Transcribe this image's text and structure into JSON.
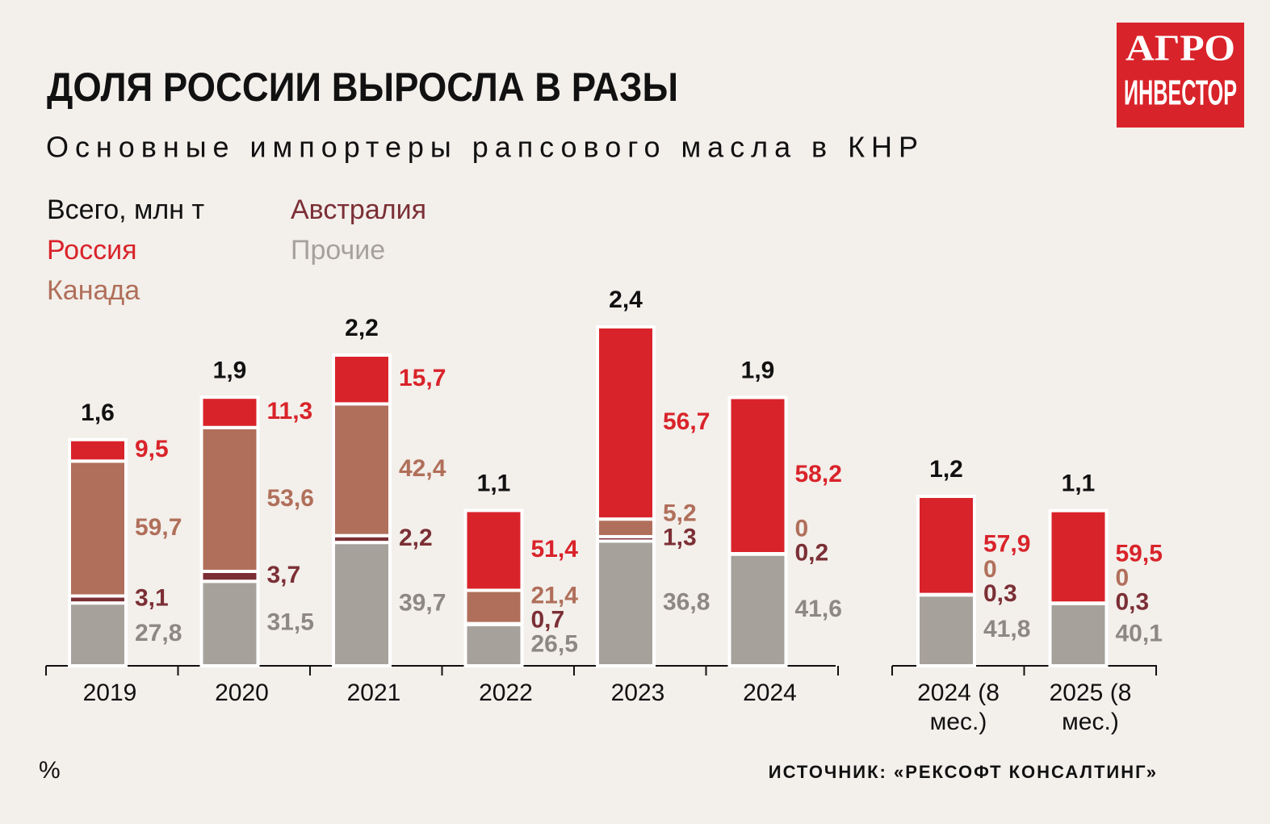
{
  "chart_data": {
    "type": "stacked-bar",
    "title": "ДОЛЯ РОССИИ ВЫРОСЛА В РАЗЫ",
    "subtitle": "Основные импортеры рапсового масла в КНР",
    "unit_note": "%",
    "source": "ИСТОЧНИК: «РЕКСОФТ КОНСАЛТИНГ»",
    "logo": [
      "АГРО",
      "ИНВЕСТОР"
    ],
    "categories": [
      "2019",
      "2020",
      "2021",
      "2022",
      "2023",
      "2024",
      "2024 (8 мес.)",
      "2025 (8 мес.)"
    ],
    "totals": {
      "name": "Всего, млн т",
      "color": "#111111",
      "values": [
        1.6,
        1.9,
        2.2,
        1.1,
        2.4,
        1.9,
        1.2,
        1.1
      ],
      "value_labels": [
        "1,6",
        "1,9",
        "2,2",
        "1,1",
        "2,4",
        "1,9",
        "1,2",
        "1,1"
      ]
    },
    "series": [
      {
        "name": "Россия",
        "color": "#d9232a",
        "values": [
          9.5,
          11.3,
          15.7,
          51.4,
          56.7,
          58.2,
          57.9,
          59.5
        ],
        "value_labels": [
          "9,5",
          "11,3",
          "15,7",
          "51,4",
          "56,7",
          "58,2",
          "57,9",
          "59,5"
        ]
      },
      {
        "name": "Канада",
        "color": "#b06f5a",
        "values": [
          59.7,
          53.6,
          42.4,
          21.4,
          5.2,
          0,
          0,
          0
        ],
        "value_labels": [
          "59,7",
          "53,6",
          "42,4",
          "21,4",
          "5,2",
          "0",
          "0",
          "0"
        ]
      },
      {
        "name": "Австралия",
        "color": "#7b2f35",
        "values": [
          3.1,
          3.7,
          2.2,
          0.7,
          1.3,
          0.2,
          0.3,
          0.3
        ],
        "value_labels": [
          "3,1",
          "3,7",
          "2,2",
          "0,7",
          "1,3",
          "0,2",
          "0,3",
          "0,3"
        ]
      },
      {
        "name": "Прочие",
        "color": "#a7a19c",
        "values": [
          27.8,
          31.5,
          39.7,
          26.5,
          36.8,
          41.6,
          41.8,
          40.1
        ],
        "value_labels": [
          "27,8",
          "31,5",
          "39,7",
          "26,5",
          "36,8",
          "41,6",
          "41,8",
          "40,1"
        ]
      }
    ]
  }
}
